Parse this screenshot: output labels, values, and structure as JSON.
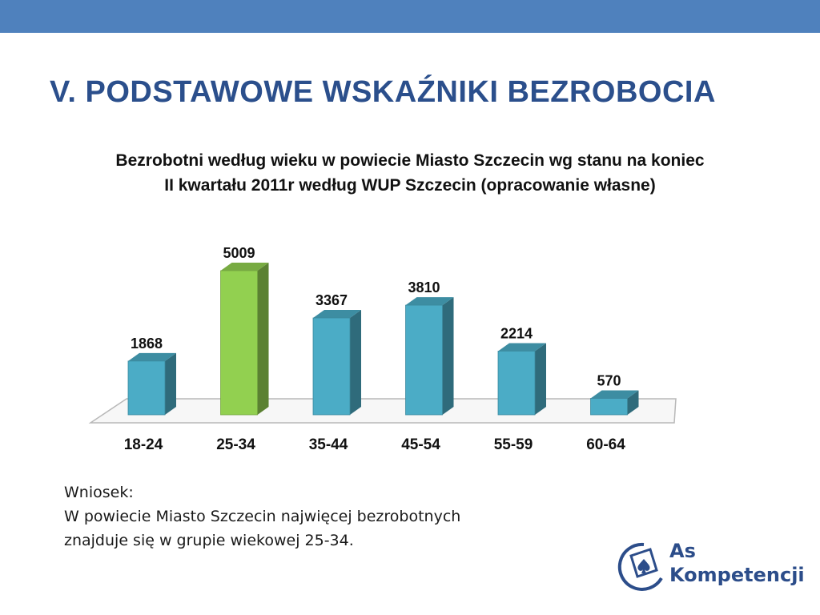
{
  "slide": {
    "title": "V. PODSTAWOWE WSKAŹNIKI BEZROBOCIA",
    "accent_color": "#4f81bd",
    "title_color": "#2b4f8c"
  },
  "chart_title": {
    "line1": "Bezrobotni według wieku w powiecie Miasto Szczecin wg stanu na koniec",
    "line2": "II kwartału 2011r według WUP Szczecin (opracowanie własne)"
  },
  "chart_data": {
    "type": "bar",
    "categories": [
      "18-24",
      "25-34",
      "35-44",
      "45-54",
      "55-59",
      "60-64"
    ],
    "values": [
      1868,
      5009,
      3367,
      3810,
      2214,
      570
    ],
    "highlight_index": 1,
    "colors": {
      "default": "#4bacc6",
      "highlight": "#92d050"
    },
    "ylim": [
      0,
      5009
    ],
    "grid": false,
    "legend": "none",
    "style": "3d-column"
  },
  "conclusion": {
    "heading": "Wniosek:",
    "line1": "W powiecie Miasto Szczecin najwięcej bezrobotnych",
    "line2": "znajduje się w grupie wiekowej 25-34."
  },
  "logo": {
    "name": "spade-logo-icon",
    "line1": "As",
    "line2": "Kompetencji"
  }
}
